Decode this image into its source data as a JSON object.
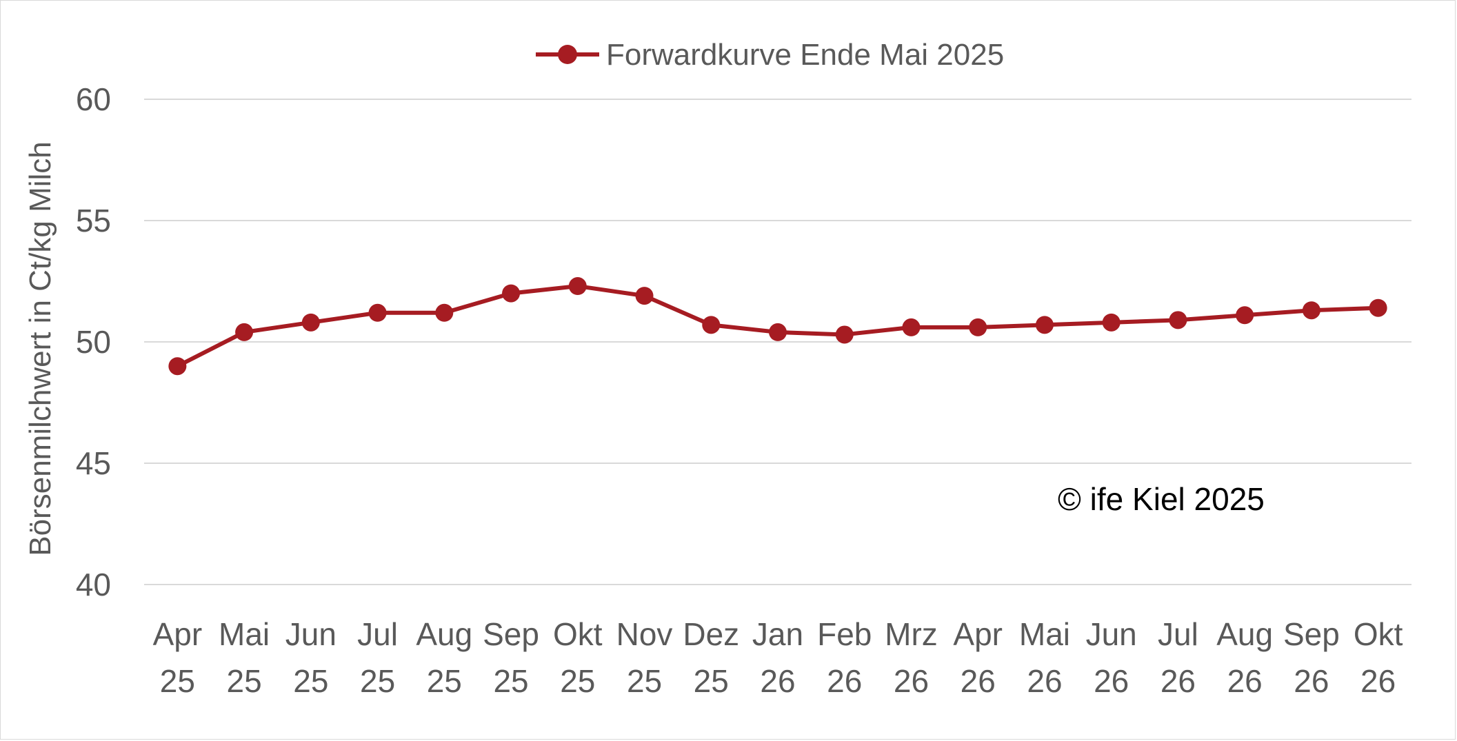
{
  "chart_data": {
    "type": "line",
    "categories": [
      [
        "Apr",
        "25"
      ],
      [
        "Mai",
        "25"
      ],
      [
        "Jun",
        "25"
      ],
      [
        "Jul",
        "25"
      ],
      [
        "Aug",
        "25"
      ],
      [
        "Sep",
        "25"
      ],
      [
        "Okt",
        "25"
      ],
      [
        "Nov",
        "25"
      ],
      [
        "Dez",
        "25"
      ],
      [
        "Jan",
        "26"
      ],
      [
        "Feb",
        "26"
      ],
      [
        "Mrz",
        "26"
      ],
      [
        "Apr",
        "26"
      ],
      [
        "Mai",
        "26"
      ],
      [
        "Jun",
        "26"
      ],
      [
        "Jul",
        "26"
      ],
      [
        "Aug",
        "26"
      ],
      [
        "Sep",
        "26"
      ],
      [
        "Okt",
        "26"
      ]
    ],
    "series": [
      {
        "name": "Forwardkurve Ende Mai 2025",
        "color": "#A61C22",
        "values": [
          49.0,
          50.4,
          50.8,
          51.2,
          51.2,
          52.0,
          52.3,
          51.9,
          50.7,
          50.4,
          50.3,
          50.6,
          50.6,
          50.7,
          50.8,
          50.9,
          51.1,
          51.3,
          51.4
        ]
      }
    ],
    "ylabel": "Börsenmilchwert in Ct/kg Milch",
    "xlabel": "",
    "ylim": [
      40,
      60
    ],
    "yticks": [
      "40",
      "45",
      "50",
      "55",
      "60"
    ],
    "grid": true,
    "legend_position": "top-center",
    "annotation": "© ife Kiel 2025"
  }
}
